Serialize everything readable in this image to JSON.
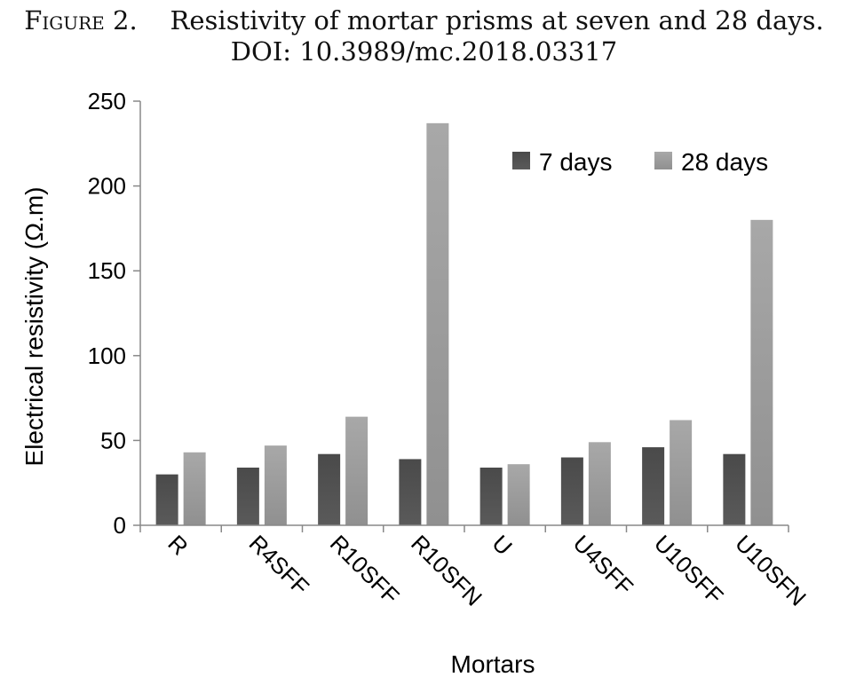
{
  "caption": {
    "figure_label": "Figure 2.",
    "title": "Resistivity of mortar prisms at seven and 28 days.",
    "doi": "DOI: 10.3989/mc.2018.03317"
  },
  "chart_data": {
    "type": "bar",
    "categories": [
      "R",
      "R4SFF",
      "R10SFF",
      "R10SFN",
      "U",
      "U4SFF",
      "U10SFF",
      "U10SFN"
    ],
    "series": [
      {
        "name": "7 days",
        "values": [
          30,
          34,
          42,
          39,
          34,
          40,
          46,
          42
        ],
        "color": "#4a4a4a"
      },
      {
        "name": "28 days",
        "values": [
          43,
          47,
          64,
          237,
          36,
          49,
          62,
          180
        ],
        "color": "#a8a8a8"
      }
    ],
    "xlabel": "Mortars",
    "ylabel": "Electrical resistivity (Ω.m)",
    "ylim": [
      0,
      250
    ],
    "yticks": [
      "0",
      "50",
      "100",
      "150",
      "200",
      "250"
    ],
    "grid": false,
    "legend_position": "top-right"
  }
}
